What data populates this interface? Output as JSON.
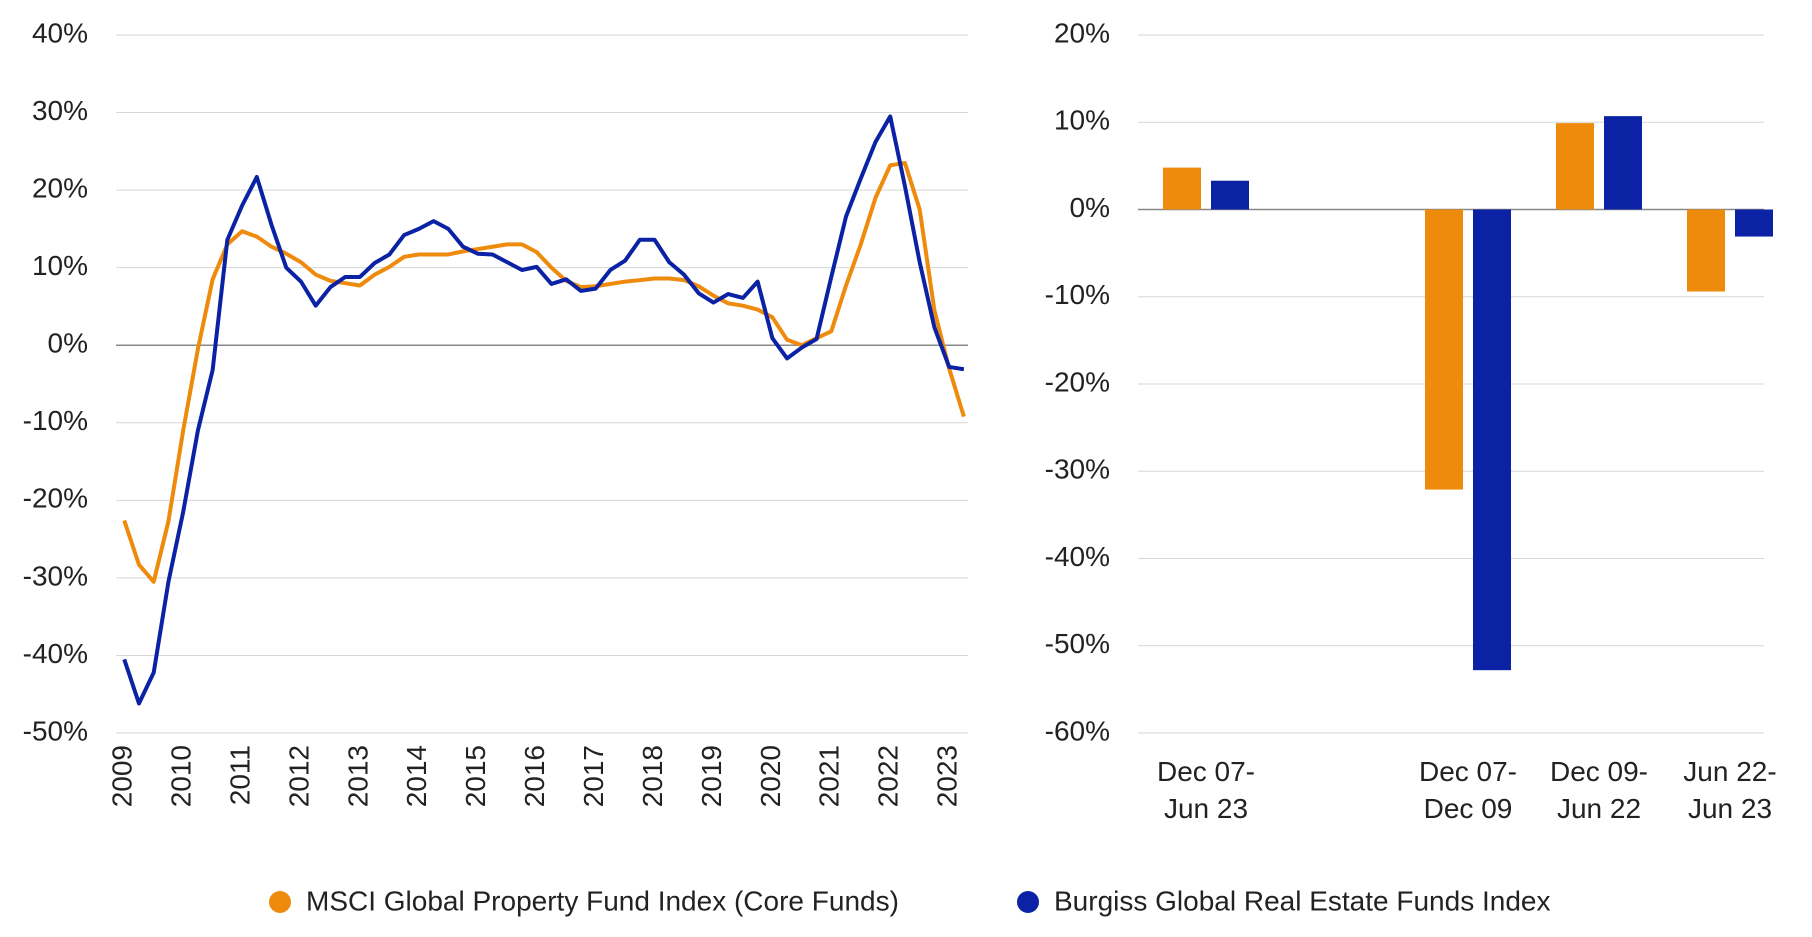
{
  "chart_data": [
    {
      "type": "line",
      "x": [
        2009,
        2009.25,
        2009.5,
        2009.75,
        2010,
        2010.25,
        2010.5,
        2010.75,
        2011,
        2011.25,
        2011.5,
        2011.75,
        2012,
        2012.25,
        2012.5,
        2012.75,
        2013,
        2013.25,
        2013.5,
        2013.75,
        2014,
        2014.25,
        2014.5,
        2014.75,
        2015,
        2015.25,
        2015.5,
        2015.75,
        2016,
        2016.25,
        2016.5,
        2016.75,
        2017,
        2017.25,
        2017.5,
        2017.75,
        2018,
        2018.25,
        2018.5,
        2018.75,
        2019,
        2019.25,
        2019.5,
        2019.75,
        2020,
        2020.25,
        2020.5,
        2020.75,
        2021,
        2021.25,
        2021.5,
        2021.75,
        2022,
        2022.25,
        2022.5,
        2022.75,
        2023,
        2023.25
      ],
      "xlim": [
        2008.86,
        2023.32
      ],
      "xticks": [
        2009,
        2010,
        2011,
        2012,
        2013,
        2014,
        2015,
        2016,
        2017,
        2018,
        2019,
        2020,
        2021,
        2022,
        2023
      ],
      "ylim": [
        -50,
        40
      ],
      "yticks": [
        {
          "value": -50,
          "label": "-50%"
        },
        {
          "value": -40,
          "label": "-40%"
        },
        {
          "value": -30,
          "label": "-30%"
        },
        {
          "value": -20,
          "label": "-20%"
        },
        {
          "value": -10,
          "label": "-10%"
        },
        {
          "value": 0,
          "label": "0%"
        },
        {
          "value": 10,
          "label": "10%"
        },
        {
          "value": 20,
          "label": "20%"
        },
        {
          "value": 30,
          "label": "30%"
        },
        {
          "value": 40,
          "label": "40%"
        }
      ],
      "grid": true,
      "series": [
        {
          "name": "MSCI Global Property Fund Index (Core Funds)",
          "color": "#ee8a0c",
          "values": [
            -22.6,
            -28.3,
            -30.5,
            -22.7,
            -11,
            -0.5,
            8.5,
            13,
            14.7,
            14,
            12.7,
            11.8,
            10.7,
            9.1,
            8.3,
            8,
            7.7,
            9.1,
            10.1,
            11.4,
            11.7,
            11.7,
            11.7,
            12.1,
            12.4,
            12.7,
            13,
            13,
            12,
            10,
            8.3,
            7.5,
            7.6,
            7.9,
            8.2,
            8.4,
            8.6,
            8.6,
            8.4,
            7.6,
            6.4,
            5.4,
            5.1,
            4.6,
            3.6,
            0.7,
            0,
            0.9,
            1.8,
            7.7,
            13,
            19,
            23.2,
            23.5,
            17.5,
            4.5,
            -3,
            -9.2
          ]
        },
        {
          "name": "Burgiss Global Real Estate Funds Index",
          "color": "#0a22a3",
          "values": [
            -40.5,
            -46.2,
            -42.2,
            -30.5,
            -21.5,
            -11,
            -3.2,
            13.6,
            18,
            21.7,
            15.5,
            10,
            8.2,
            5.1,
            7.5,
            8.8,
            8.8,
            10.6,
            11.7,
            14.2,
            15,
            16,
            15,
            12.7,
            11.8,
            11.7,
            10.7,
            9.7,
            10.1,
            7.9,
            8.5,
            7,
            7.3,
            9.7,
            10.9,
            13.6,
            13.6,
            10.7,
            9.1,
            6.7,
            5.5,
            6.6,
            6.1,
            8.2,
            0.9,
            -1.7,
            -0.3,
            0.8,
            8.8,
            16.6,
            21.5,
            26.2,
            29.5,
            20.5,
            10.7,
            2.3,
            -2.8,
            -3.1
          ]
        }
      ]
    },
    {
      "type": "bar",
      "categories": [
        "Dec 07-\nJun 23",
        null,
        "Dec 07-\nDec 09",
        "Dec 09-\nJun 22",
        "Jun 22-\nJun 23"
      ],
      "ylim": [
        -60,
        20
      ],
      "yticks": [
        {
          "value": -60,
          "label": "-60%"
        },
        {
          "value": -50,
          "label": "-50%"
        },
        {
          "value": -40,
          "label": "-40%"
        },
        {
          "value": -30,
          "label": "-30%"
        },
        {
          "value": -20,
          "label": "-20%"
        },
        {
          "value": -10,
          "label": "-10%"
        },
        {
          "value": 0,
          "label": "0%"
        },
        {
          "value": 10,
          "label": "10%"
        },
        {
          "value": 20,
          "label": "20%"
        }
      ],
      "grid": true,
      "series": [
        {
          "color": "#ee8a0c",
          "values": [
            4.8,
            null,
            -32.1,
            9.9,
            -9.4
          ]
        },
        {
          "color": "#0a22a3",
          "values": [
            3.3,
            null,
            -52.8,
            10.7,
            -3.1
          ]
        }
      ]
    }
  ]
}
